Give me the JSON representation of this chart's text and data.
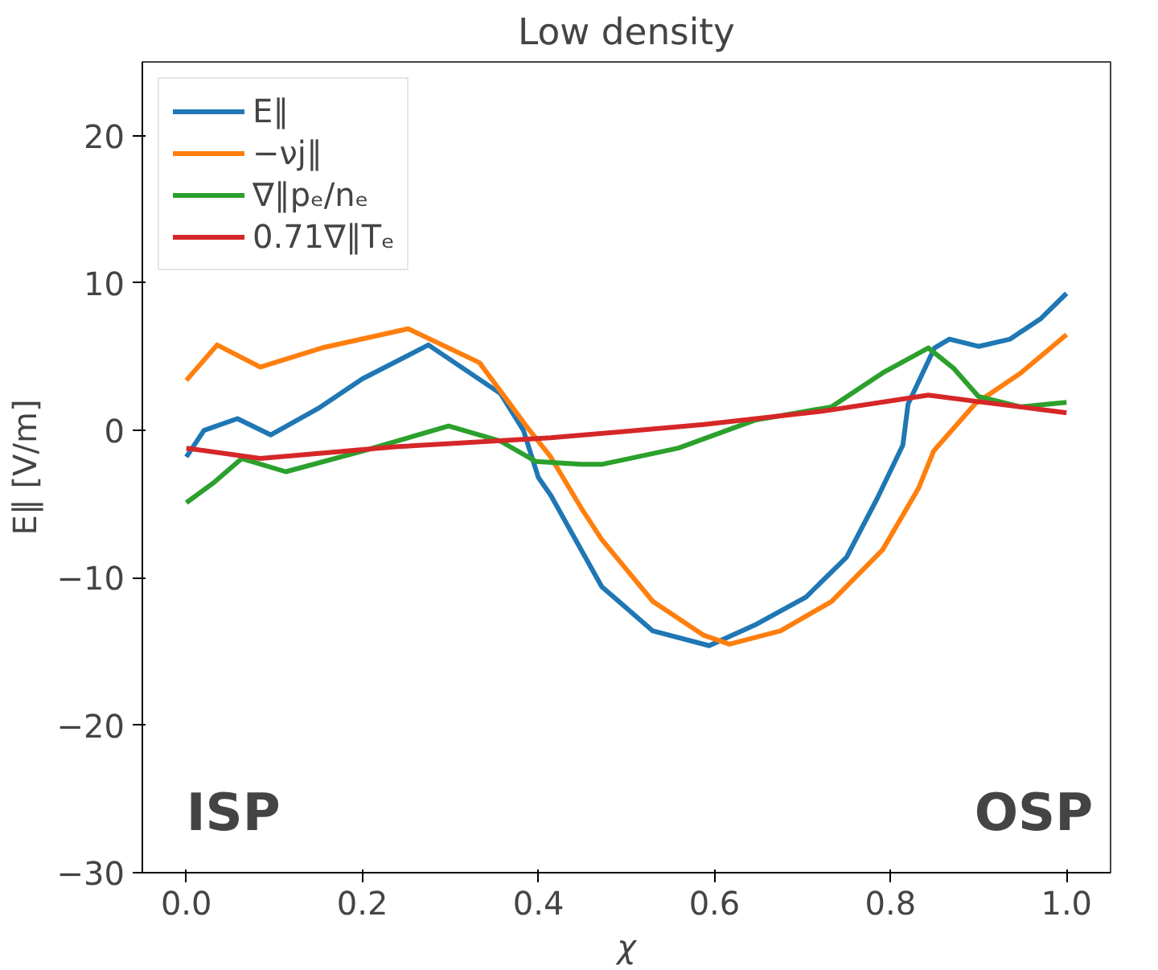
{
  "chart_data": {
    "type": "line",
    "title": "Low density",
    "xlabel": "χ",
    "ylabel": "E∥ [V/m]",
    "xlim": [
      -0.05,
      1.05
    ],
    "xticks": [
      {
        "value": 0,
        "label": "0.0"
      },
      {
        "value": 0.2,
        "label": "0.2"
      },
      {
        "value": 0.4,
        "label": "0.4"
      },
      {
        "value": 0.6,
        "label": "0.6"
      },
      {
        "value": 0.8,
        "label": "0.8"
      },
      {
        "value": 1,
        "label": "1.0"
      }
    ],
    "ylim": [
      -30,
      25
    ],
    "yticks": [
      {
        "value": -30,
        "label": "−30"
      },
      {
        "value": -20,
        "label": "−20"
      },
      {
        "value": -10,
        "label": "−10"
      },
      0,
      10,
      20
    ],
    "grid": false,
    "legend": "top left",
    "line_style": "solid",
    "annotations": [
      "ISP",
      "OSP"
    ],
    "series": [
      {
        "name": "E∥",
        "color": "#1f77b4",
        "x": [
          0,
          0.02,
          0.058,
          0.096,
          0.15,
          0.2,
          0.275,
          0.357,
          0.383,
          0.4,
          0.414,
          0.472,
          0.53,
          0.594,
          0.646,
          0.704,
          0.75,
          0.785,
          0.814,
          0.82,
          0.85,
          0.867,
          0.9,
          0.936,
          0.971,
          1.0
        ],
        "values": [
          -1.8,
          0,
          0.8,
          -0.3,
          1.5,
          3.5,
          5.8,
          2.5,
          0,
          -3.2,
          -4.4,
          -10.6,
          -13.6,
          -14.6,
          -13.2,
          -11.3,
          -8.6,
          -4.6,
          -1,
          1.8,
          5.6,
          6.2,
          5.7,
          6.2,
          7.6,
          9.3
        ]
      },
      {
        "name": "−νj∥",
        "color": "#ff7f0e",
        "x": [
          0,
          0.035,
          0.084,
          0.154,
          0.252,
          0.333,
          0.39,
          0.414,
          0.449,
          0.472,
          0.53,
          0.588,
          0.617,
          0.675,
          0.733,
          0.791,
          0.832,
          0.849,
          0.896,
          0.948,
          1.0
        ],
        "values": [
          3.4,
          5.8,
          4.3,
          5.6,
          6.9,
          4.6,
          0,
          -1.8,
          -5.3,
          -7.4,
          -11.6,
          -13.9,
          -14.5,
          -13.6,
          -11.6,
          -8.1,
          -3.9,
          -1.4,
          1.8,
          3.9,
          6.5
        ]
      },
      {
        "name": "∇∥pₑ/nₑ",
        "color": "#2ca02c",
        "x": [
          0,
          0.032,
          0.063,
          0.113,
          0.2,
          0.298,
          0.356,
          0.397,
          0.449,
          0.472,
          0.559,
          0.646,
          0.733,
          0.791,
          0.843,
          0.872,
          0.9,
          0.948,
          1.0
        ],
        "values": [
          -4.9,
          -3.5,
          -1.9,
          -2.8,
          -1.4,
          0.3,
          -0.7,
          -2.1,
          -2.3,
          -2.3,
          -1.2,
          0.7,
          1.6,
          3.9,
          5.6,
          4.2,
          2.3,
          1.6,
          1.9
        ]
      },
      {
        "name": "0.71∇∥Tₑ",
        "color": "#d62728",
        "x": [
          0,
          0.084,
          0.24,
          0.414,
          0.588,
          0.722,
          0.843,
          0.907,
          1.0
        ],
        "values": [
          -1.2,
          -1.9,
          -1.1,
          -0.5,
          0.4,
          1.3,
          2.4,
          1.9,
          1.2
        ]
      }
    ]
  }
}
